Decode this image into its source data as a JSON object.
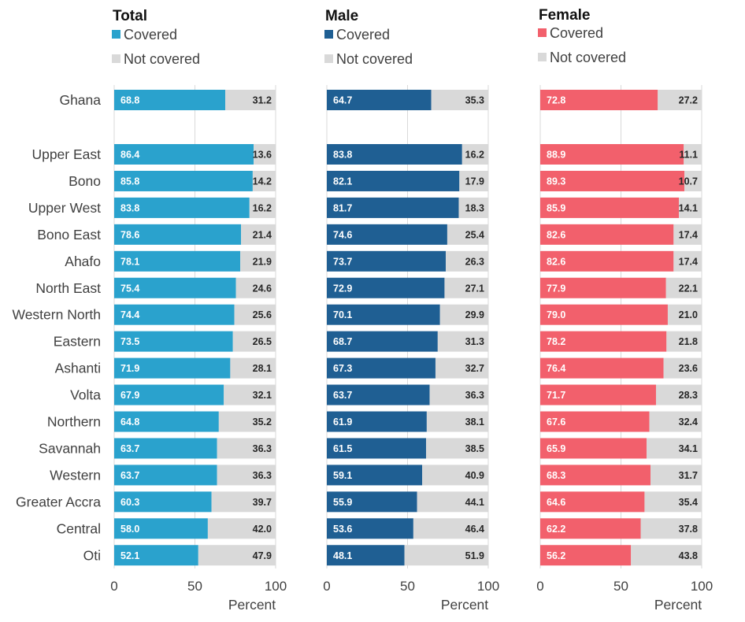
{
  "chart_data": {
    "type": "bar",
    "orientation": "horizontal",
    "stacked": true,
    "xlabel": "Percent",
    "xlim": [
      0,
      100
    ],
    "xticks": [
      0,
      50,
      100
    ],
    "grid": true,
    "categories": [
      "Ghana",
      "Upper East",
      "Bono",
      "Upper West",
      "Bono East",
      "Ahafo",
      "North East",
      "Western North",
      "Eastern",
      "Ashanti",
      "Volta",
      "Northern",
      "Savannah",
      "Western",
      "Greater Accra",
      "Central",
      "Oti"
    ],
    "panels": [
      {
        "title": "Total",
        "series": [
          {
            "name": "Covered",
            "color": "#2aa2cd",
            "values": [
              68.8,
              86.4,
              85.8,
              83.8,
              78.6,
              78.1,
              75.4,
              74.4,
              73.5,
              71.9,
              67.9,
              64.8,
              63.7,
              63.7,
              60.3,
              58.0,
              52.1
            ],
            "labels": [
              "68.8",
              "86.4",
              "85.8",
              "83.8",
              "78.6",
              "78.1",
              "75.4",
              "74.4",
              "73.5",
              "71.9",
              "67.9",
              "64.8",
              "63.7",
              "63.7",
              "60.3",
              "58.0",
              "52.1"
            ]
          },
          {
            "name": "Not covered",
            "color": "#d9d9d9",
            "values": [
              31.2,
              13.6,
              14.2,
              16.2,
              21.4,
              21.9,
              24.6,
              25.6,
              26.5,
              28.1,
              32.1,
              35.2,
              36.3,
              36.3,
              39.7,
              42.0,
              47.9
            ],
            "labels": [
              "31.2",
              "13.6",
              "14.2",
              "16.2",
              "21.4",
              "21.9",
              "24.6",
              "25.6",
              "26.5",
              "28.1",
              "32.1",
              "35.2",
              "36.3",
              "36.3",
              "39.7",
              "42.0",
              "47.9"
            ]
          }
        ]
      },
      {
        "title": "Male",
        "series": [
          {
            "name": "Covered",
            "color": "#1f5f93",
            "values": [
              64.7,
              83.8,
              82.1,
              81.7,
              74.6,
              73.7,
              72.9,
              70.1,
              68.7,
              67.3,
              63.7,
              61.9,
              61.5,
              59.1,
              55.9,
              53.6,
              48.1
            ],
            "labels": [
              "64.7",
              "83.8",
              "82.1",
              "81.7",
              "74.6",
              "73.7",
              "72.9",
              "70.1",
              "68.7",
              "67.3",
              "63.7",
              "61.9",
              "61.5",
              "59.1",
              "55.9",
              "53.6",
              "48.1"
            ]
          },
          {
            "name": "Not covered",
            "color": "#d9d9d9",
            "values": [
              35.3,
              16.2,
              17.9,
              18.3,
              25.4,
              26.3,
              27.1,
              29.9,
              31.3,
              32.7,
              36.3,
              38.1,
              38.5,
              40.9,
              44.1,
              46.4,
              51.9
            ],
            "labels": [
              "35.3",
              "16.2",
              "17.9",
              "18.3",
              "25.4",
              "26.3",
              "27.1",
              "29.9",
              "31.3",
              "32.7",
              "36.3",
              "38.1",
              "38.5",
              "40.9",
              "44.1",
              "46.4",
              "51.9"
            ]
          }
        ]
      },
      {
        "title": "Female",
        "series": [
          {
            "name": "Covered",
            "color": "#f2606c",
            "values": [
              72.8,
              88.9,
              89.3,
              85.9,
              82.6,
              82.6,
              77.9,
              79.0,
              78.2,
              76.4,
              71.7,
              67.6,
              65.9,
              68.3,
              64.6,
              62.2,
              56.2
            ],
            "labels": [
              "72.8",
              "88.9",
              "89.3",
              "85.9",
              "82.6",
              "82.6",
              "77.9",
              "79.0",
              "78.2",
              "76.4",
              "71.7",
              "67.6",
              "65.9",
              "68.3",
              "64.6",
              "62.2",
              "56.2"
            ]
          },
          {
            "name": "Not covered",
            "color": "#d9d9d9",
            "values": [
              27.2,
              11.1,
              10.7,
              14.1,
              17.4,
              17.4,
              22.1,
              21.0,
              21.8,
              23.6,
              28.3,
              32.4,
              34.1,
              31.7,
              35.4,
              37.8,
              43.8
            ],
            "labels": [
              "27.2",
              "11.1",
              "10.7",
              "14.1",
              "17.4",
              "17.4",
              "22.1",
              "21.0",
              "21.8",
              "23.6",
              "28.3",
              "32.4",
              "34.1",
              "31.7",
              "35.4",
              "37.8",
              "43.8"
            ]
          }
        ]
      }
    ]
  }
}
